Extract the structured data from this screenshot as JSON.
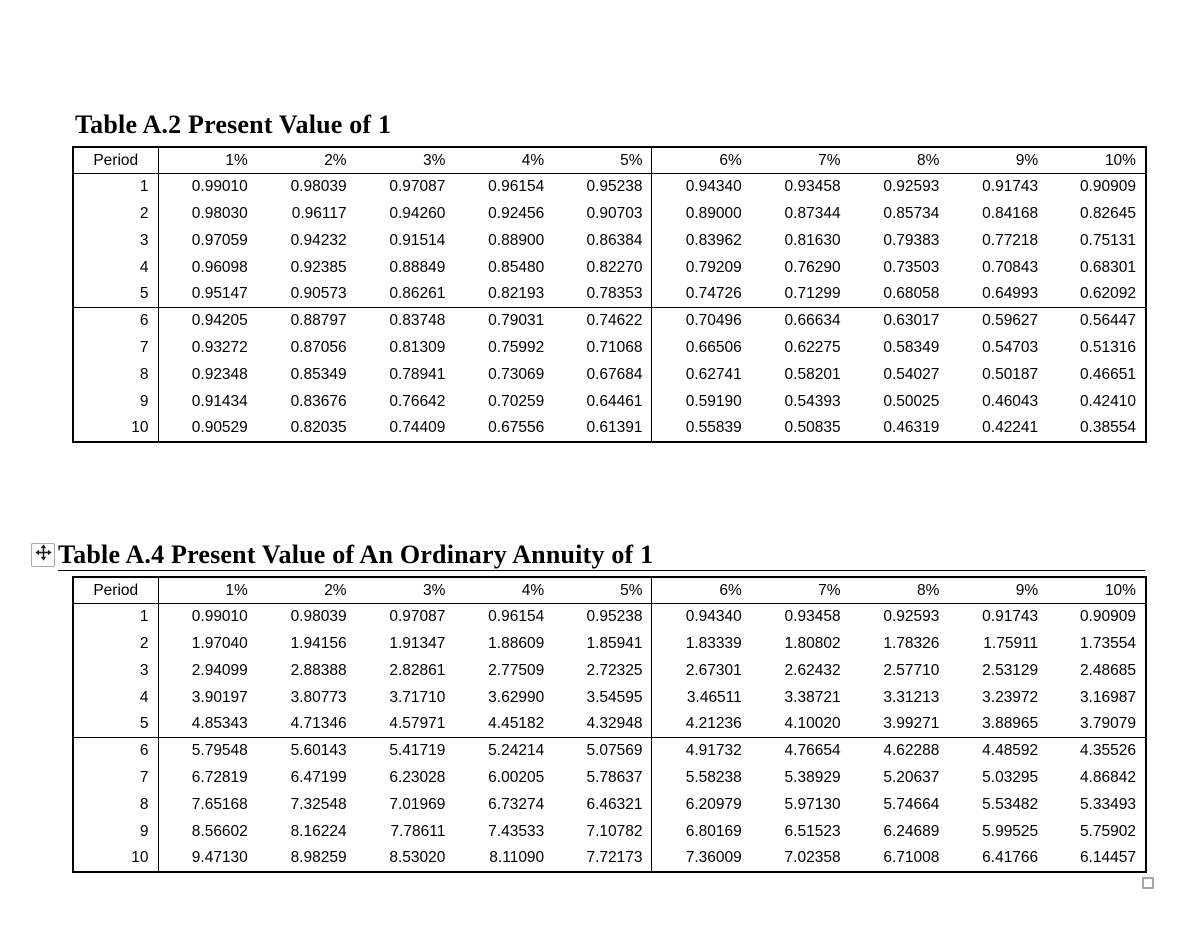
{
  "page": {
    "background_color": "#ffffff",
    "text_color": "#000000",
    "border_color": "#000000",
    "handle_border_color": "#a6a6a6"
  },
  "icons": {
    "move_handle": "table-move-cross-icon",
    "resize_handle": "table-resize-square-icon"
  },
  "tables": [
    {
      "id": "a2",
      "title": "Table A.2 Present Value of 1",
      "columns": [
        "Period",
        "1%",
        "2%",
        "3%",
        "4%",
        "5%",
        "6%",
        "7%",
        "8%",
        "9%",
        "10%"
      ],
      "group_break_after": 5,
      "rows": [
        [
          "1",
          "0.99010",
          "0.98039",
          "0.97087",
          "0.96154",
          "0.95238",
          "0.94340",
          "0.93458",
          "0.92593",
          "0.91743",
          "0.90909"
        ],
        [
          "2",
          "0.98030",
          "0.96117",
          "0.94260",
          "0.92456",
          "0.90703",
          "0.89000",
          "0.87344",
          "0.85734",
          "0.84168",
          "0.82645"
        ],
        [
          "3",
          "0.97059",
          "0.94232",
          "0.91514",
          "0.88900",
          "0.86384",
          "0.83962",
          "0.81630",
          "0.79383",
          "0.77218",
          "0.75131"
        ],
        [
          "4",
          "0.96098",
          "0.92385",
          "0.88849",
          "0.85480",
          "0.82270",
          "0.79209",
          "0.76290",
          "0.73503",
          "0.70843",
          "0.68301"
        ],
        [
          "5",
          "0.95147",
          "0.90573",
          "0.86261",
          "0.82193",
          "0.78353",
          "0.74726",
          "0.71299",
          "0.68058",
          "0.64993",
          "0.62092"
        ],
        [
          "6",
          "0.94205",
          "0.88797",
          "0.83748",
          "0.79031",
          "0.74622",
          "0.70496",
          "0.66634",
          "0.63017",
          "0.59627",
          "0.56447"
        ],
        [
          "7",
          "0.93272",
          "0.87056",
          "0.81309",
          "0.75992",
          "0.71068",
          "0.66506",
          "0.62275",
          "0.58349",
          "0.54703",
          "0.51316"
        ],
        [
          "8",
          "0.92348",
          "0.85349",
          "0.78941",
          "0.73069",
          "0.67684",
          "0.62741",
          "0.58201",
          "0.54027",
          "0.50187",
          "0.46651"
        ],
        [
          "9",
          "0.91434",
          "0.83676",
          "0.76642",
          "0.70259",
          "0.64461",
          "0.59190",
          "0.54393",
          "0.50025",
          "0.46043",
          "0.42410"
        ],
        [
          "10",
          "0.90529",
          "0.82035",
          "0.74409",
          "0.67556",
          "0.61391",
          "0.55839",
          "0.50835",
          "0.46319",
          "0.42241",
          "0.38554"
        ]
      ]
    },
    {
      "id": "a4",
      "title": "Table A.4 Present Value of An Ordinary Annuity of 1",
      "columns": [
        "Period",
        "1%",
        "2%",
        "3%",
        "4%",
        "5%",
        "6%",
        "7%",
        "8%",
        "9%",
        "10%"
      ],
      "group_break_after": 5,
      "rows": [
        [
          "1",
          "0.99010",
          "0.98039",
          "0.97087",
          "0.96154",
          "0.95238",
          "0.94340",
          "0.93458",
          "0.92593",
          "0.91743",
          "0.90909"
        ],
        [
          "2",
          "1.97040",
          "1.94156",
          "1.91347",
          "1.88609",
          "1.85941",
          "1.83339",
          "1.80802",
          "1.78326",
          "1.75911",
          "1.73554"
        ],
        [
          "3",
          "2.94099",
          "2.88388",
          "2.82861",
          "2.77509",
          "2.72325",
          "2.67301",
          "2.62432",
          "2.57710",
          "2.53129",
          "2.48685"
        ],
        [
          "4",
          "3.90197",
          "3.80773",
          "3.71710",
          "3.62990",
          "3.54595",
          "3.46511",
          "3.38721",
          "3.31213",
          "3.23972",
          "3.16987"
        ],
        [
          "5",
          "4.85343",
          "4.71346",
          "4.57971",
          "4.45182",
          "4.32948",
          "4.21236",
          "4.10020",
          "3.99271",
          "3.88965",
          "3.79079"
        ],
        [
          "6",
          "5.79548",
          "5.60143",
          "5.41719",
          "5.24214",
          "5.07569",
          "4.91732",
          "4.76654",
          "4.62288",
          "4.48592",
          "4.35526"
        ],
        [
          "7",
          "6.72819",
          "6.47199",
          "6.23028",
          "6.00205",
          "5.78637",
          "5.58238",
          "5.38929",
          "5.20637",
          "5.03295",
          "4.86842"
        ],
        [
          "8",
          "7.65168",
          "7.32548",
          "7.01969",
          "6.73274",
          "6.46321",
          "6.20979",
          "5.97130",
          "5.74664",
          "5.53482",
          "5.33493"
        ],
        [
          "9",
          "8.56602",
          "8.16224",
          "7.78611",
          "7.43533",
          "7.10782",
          "6.80169",
          "6.51523",
          "6.24689",
          "5.99525",
          "5.75902"
        ],
        [
          "10",
          "9.47130",
          "8.98259",
          "8.53020",
          "8.11090",
          "7.72173",
          "7.36009",
          "7.02358",
          "6.71008",
          "6.41766",
          "6.14457"
        ]
      ]
    }
  ]
}
